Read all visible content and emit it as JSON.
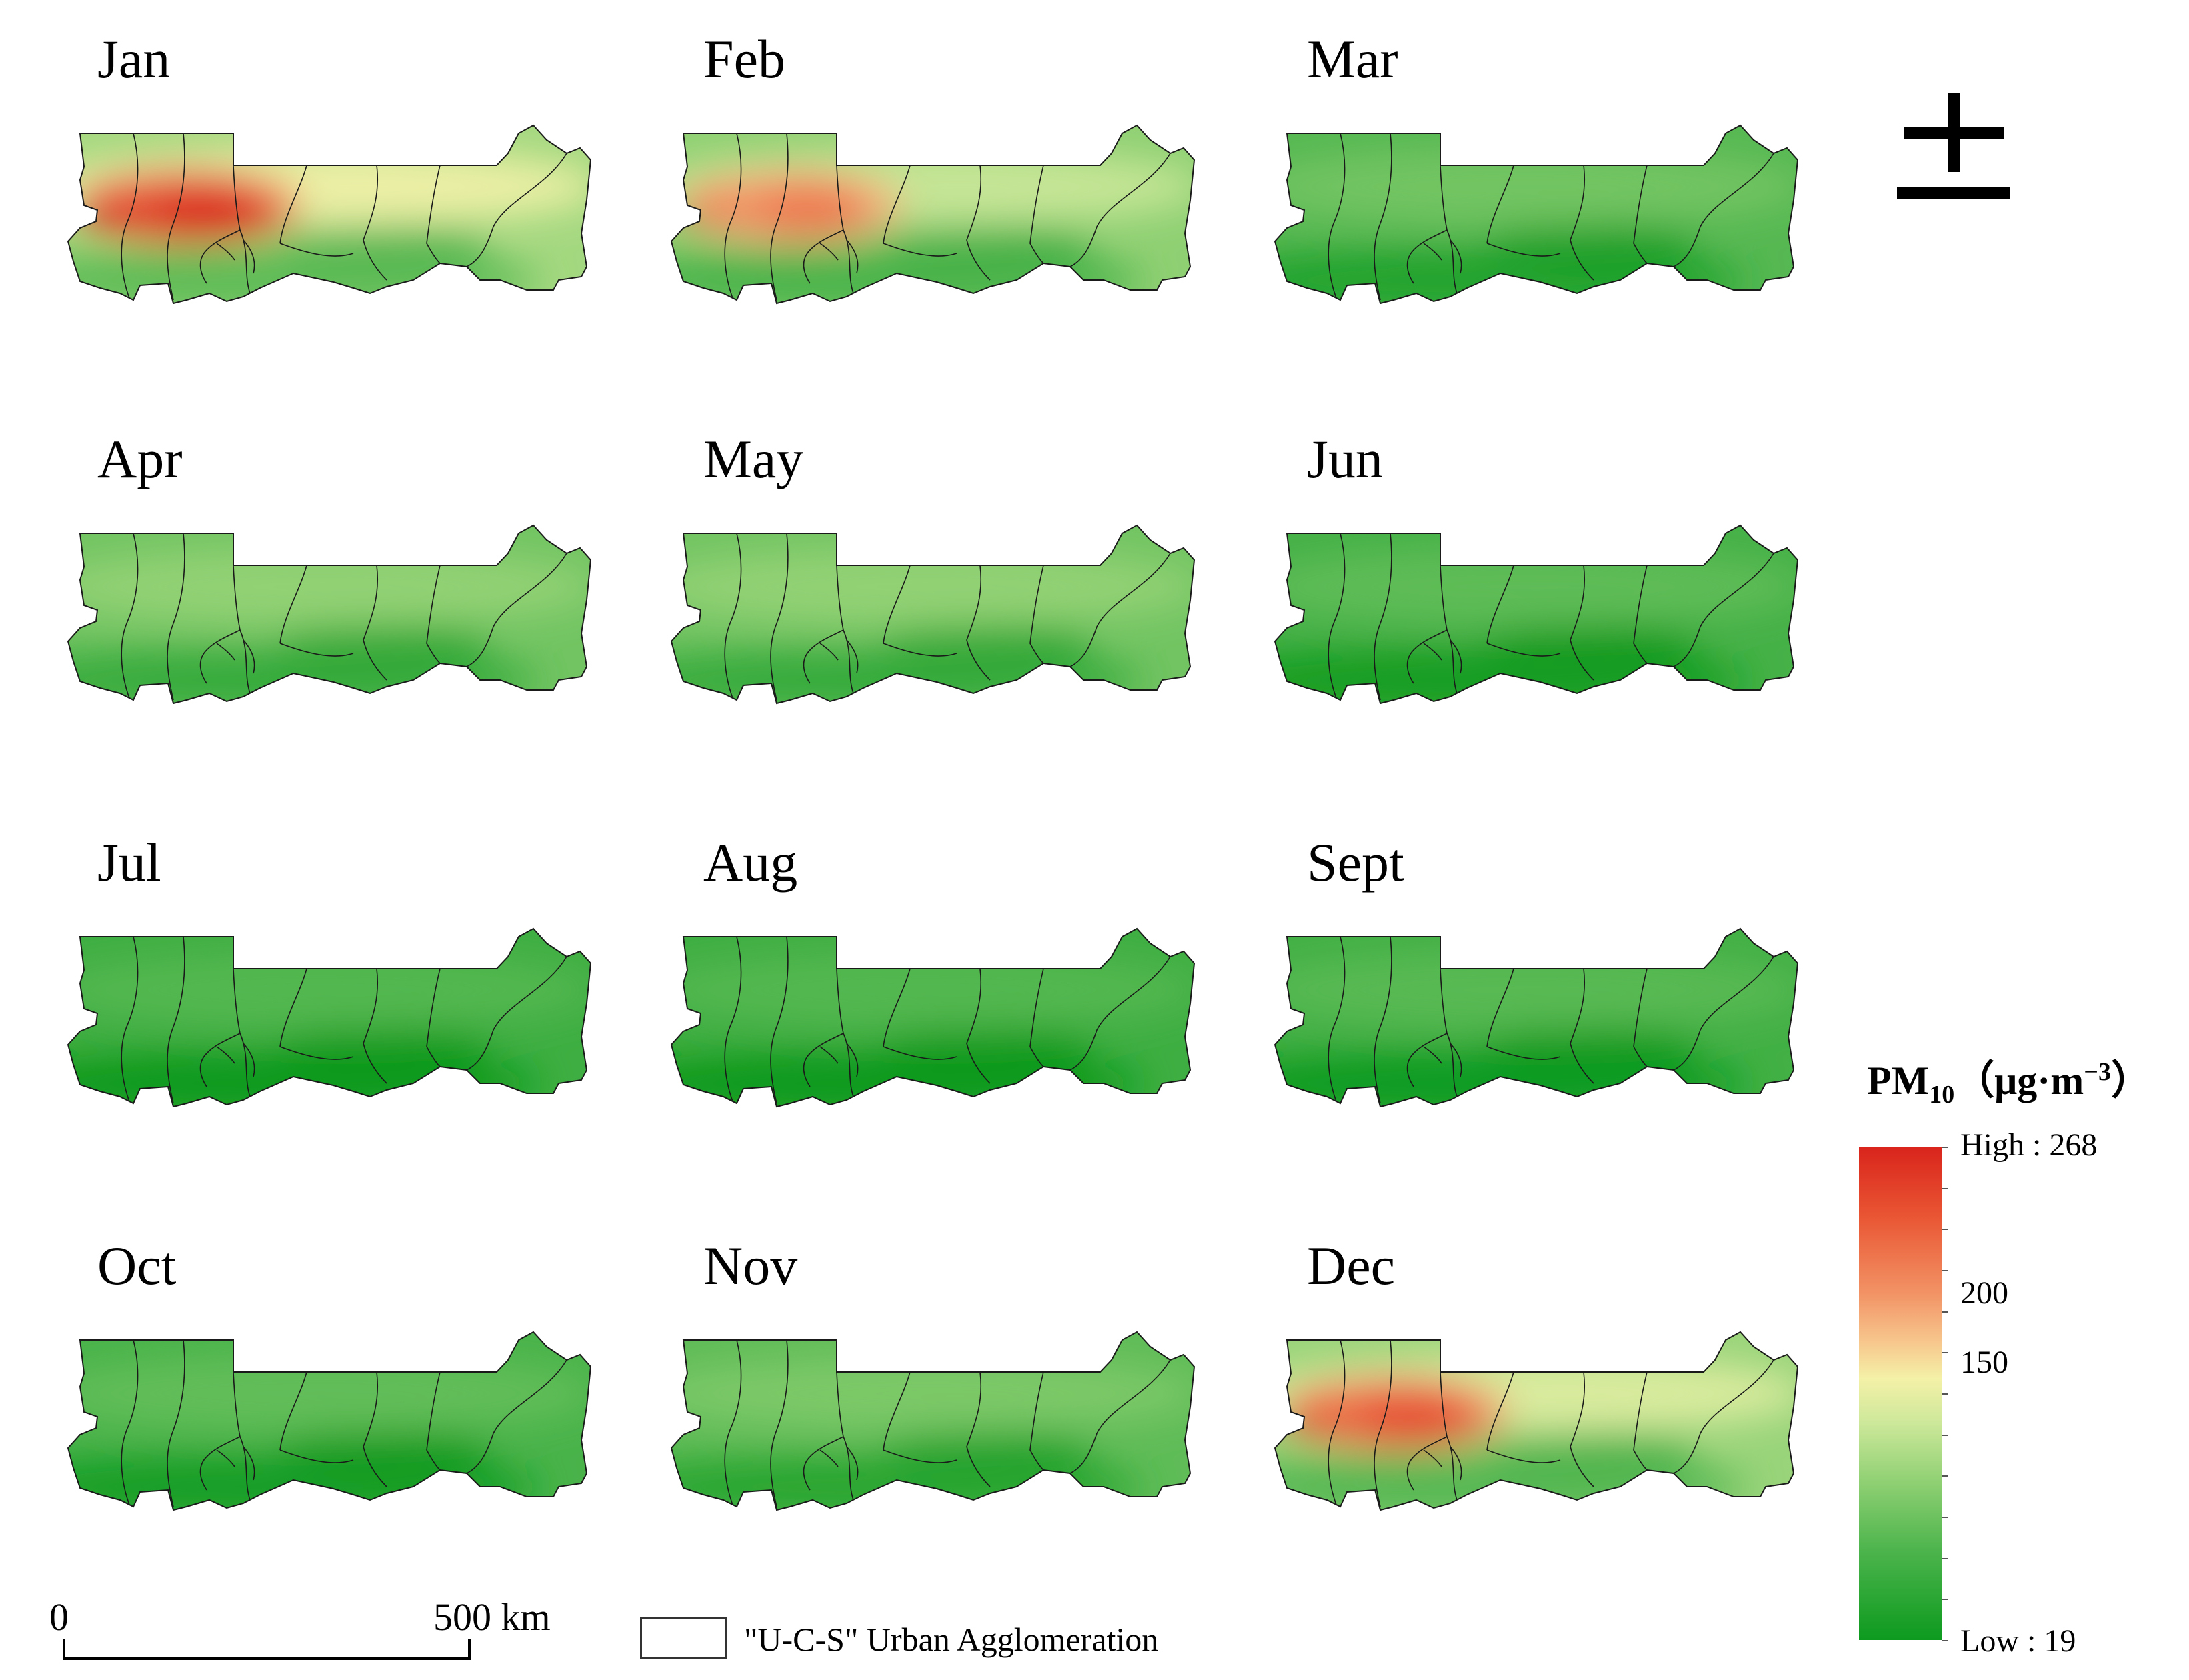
{
  "months": [
    {
      "label": "Jan",
      "hotspot": 1.0,
      "base": 0.36
    },
    {
      "label": "Feb",
      "hotspot": 0.55,
      "base": 0.32
    },
    {
      "label": "Mar",
      "hotspot": 0.1,
      "base": 0.2
    },
    {
      "label": "Apr",
      "hotspot": 0.15,
      "base": 0.26
    },
    {
      "label": "May",
      "hotspot": 0.15,
      "base": 0.26
    },
    {
      "label": "Jun",
      "hotspot": 0.08,
      "base": 0.16
    },
    {
      "label": "Jul",
      "hotspot": 0.05,
      "base": 0.14
    },
    {
      "label": "Aug",
      "hotspot": 0.05,
      "base": 0.14
    },
    {
      "label": "Sept",
      "hotspot": 0.05,
      "base": 0.15
    },
    {
      "label": "Oct",
      "hotspot": 0.06,
      "base": 0.17
    },
    {
      "label": "Nov",
      "hotspot": 0.1,
      "base": 0.22
    },
    {
      "label": "Dec",
      "hotspot": 0.78,
      "base": 0.34
    }
  ],
  "legend": {
    "title": "PM",
    "title_sub": "10",
    "title_unit_open": "（μg·m",
    "title_unit_sup": "−3",
    "title_unit_close": "）",
    "high_label": "High : 268",
    "low_label": "Low : 19",
    "high_value": 268,
    "low_value": 19,
    "mid_labels": [
      "200",
      "150"
    ],
    "mid_values": [
      200,
      150
    ],
    "colors": {
      "high": "#d9241c",
      "mid": "#f4f1a8",
      "low": "#0d9a1f"
    }
  },
  "north_arrow": {
    "icon": "north-arrow-icon"
  },
  "scale_bar": {
    "start_label": "0",
    "end_label": "500 km"
  },
  "boundary_legend": {
    "label": "\"U-C-S\" Urban Agglomeration"
  }
}
